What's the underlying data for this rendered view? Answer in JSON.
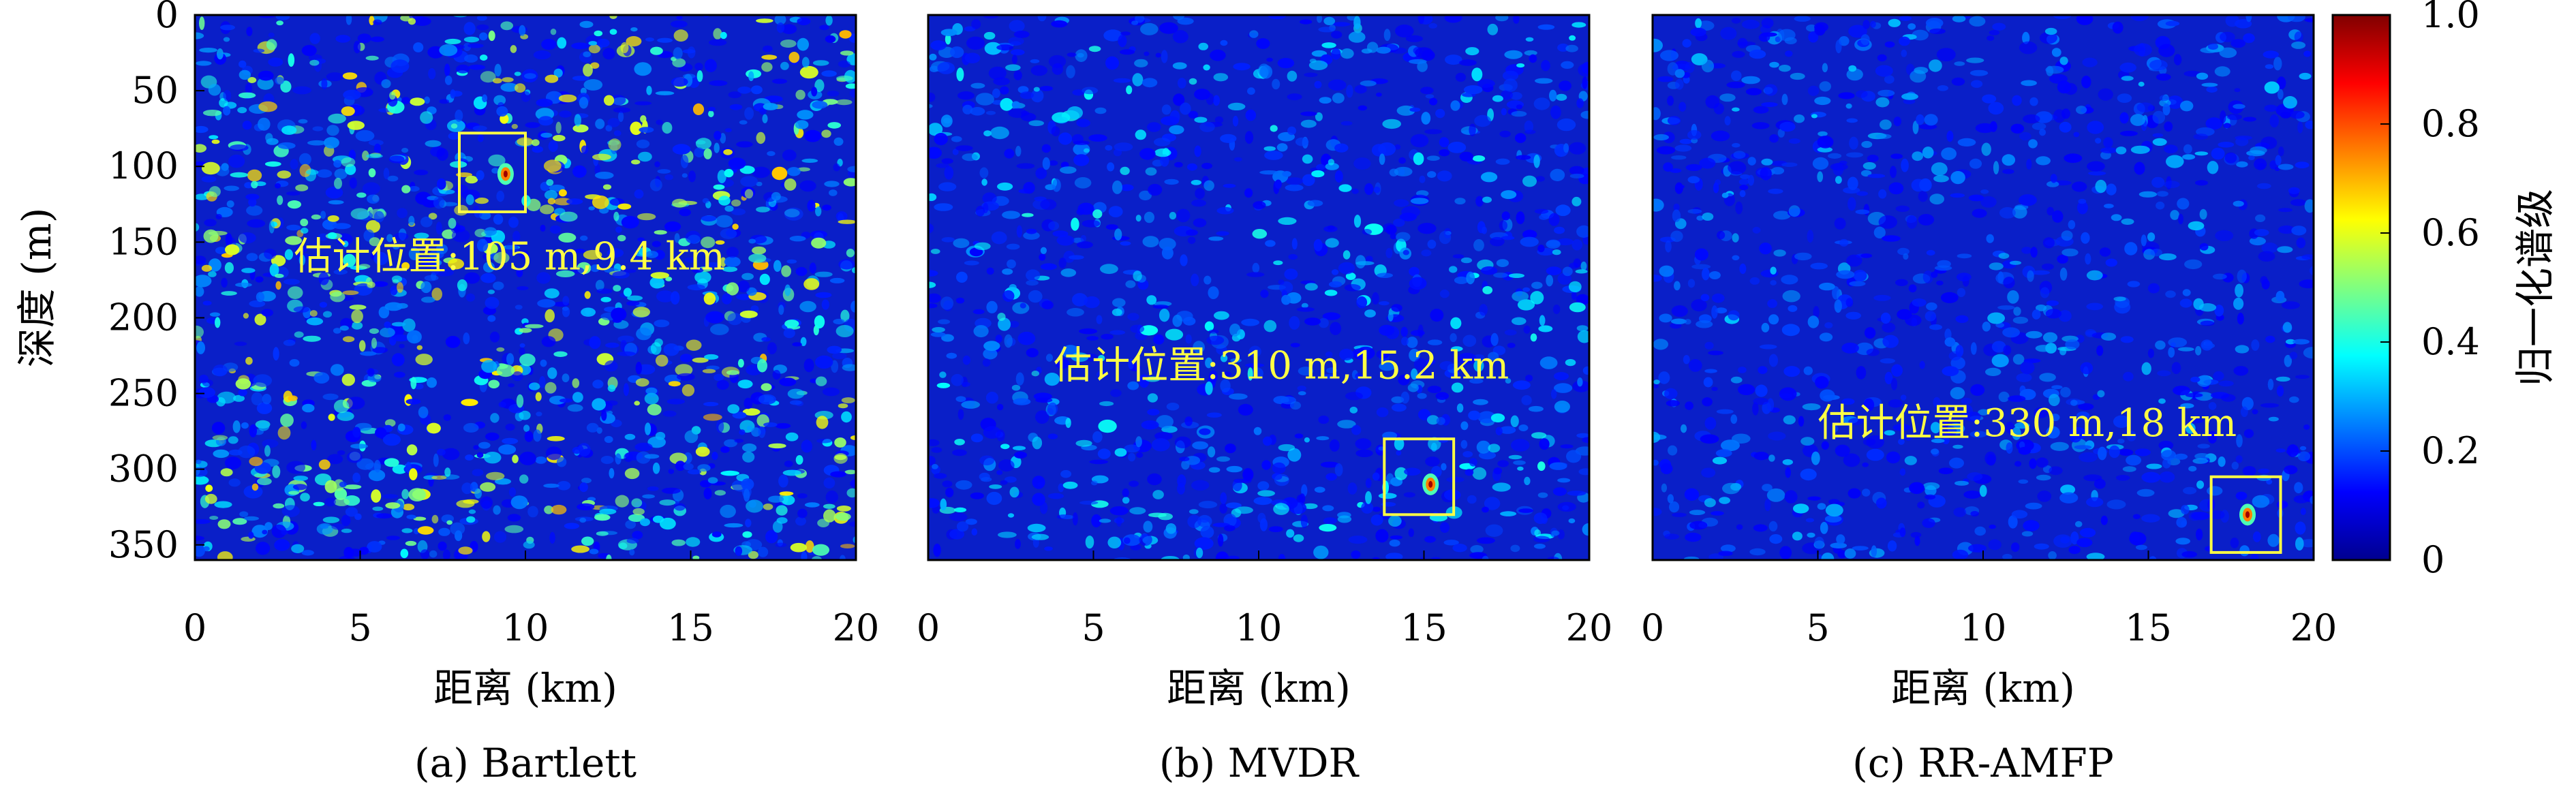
{
  "chart_data": [
    {
      "type": "heatmap",
      "caption": "(a) Bartlett",
      "xlabel": "距离 (km)",
      "ylabel": "深度 (m)",
      "xlim": [
        0,
        20
      ],
      "ylim": [
        0,
        360
      ],
      "xticks": [
        "0",
        "5",
        "10",
        "15",
        "20"
      ],
      "yticks": [
        "0",
        "50",
        "100",
        "150",
        "200",
        "250",
        "300",
        "350"
      ],
      "annotation": "估计位置:105 m,9.4 km",
      "estimate": {
        "depth_m": 105,
        "range_km": 9.4
      },
      "box": {
        "range_km": [
          8,
          10
        ],
        "depth_m": [
          78,
          130
        ]
      },
      "annotation_pos": {
        "range_km": 3,
        "depth_m": 168
      },
      "noise_level": 0.5
    },
    {
      "type": "heatmap",
      "caption": "(b) MVDR",
      "xlabel": "距离 (km)",
      "ylabel": "",
      "xlim": [
        0,
        20
      ],
      "ylim": [
        0,
        360
      ],
      "xticks": [
        "0",
        "5",
        "10",
        "15",
        "20"
      ],
      "yticks": [],
      "annotation": "估计位置:310 m,15.2 km",
      "estimate": {
        "depth_m": 310,
        "range_km": 15.2
      },
      "box": {
        "range_km": [
          13.8,
          15.9
        ],
        "depth_m": [
          280,
          330
        ]
      },
      "annotation_pos": {
        "range_km": 3.8,
        "depth_m": 240
      },
      "noise_level": 0.25
    },
    {
      "type": "heatmap",
      "caption": "(c) RR-AMFP",
      "xlabel": "距离 (km)",
      "ylabel": "",
      "xlim": [
        0,
        20
      ],
      "ylim": [
        0,
        360
      ],
      "xticks": [
        "0",
        "5",
        "10",
        "15",
        "20"
      ],
      "yticks": [],
      "annotation": "估计位置:330 m,18 km",
      "estimate": {
        "depth_m": 330,
        "range_km": 18
      },
      "box": {
        "range_km": [
          16.9,
          19
        ],
        "depth_m": [
          305,
          355
        ]
      },
      "annotation_pos": {
        "range_km": 5,
        "depth_m": 278
      },
      "noise_level": 0.18
    }
  ],
  "colorbar": {
    "label": "归一化谱级",
    "range": [
      0,
      1
    ],
    "ticks": [
      "0",
      "0.2",
      "0.4",
      "0.6",
      "0.8",
      "1.0"
    ],
    "colormap": "jet"
  }
}
